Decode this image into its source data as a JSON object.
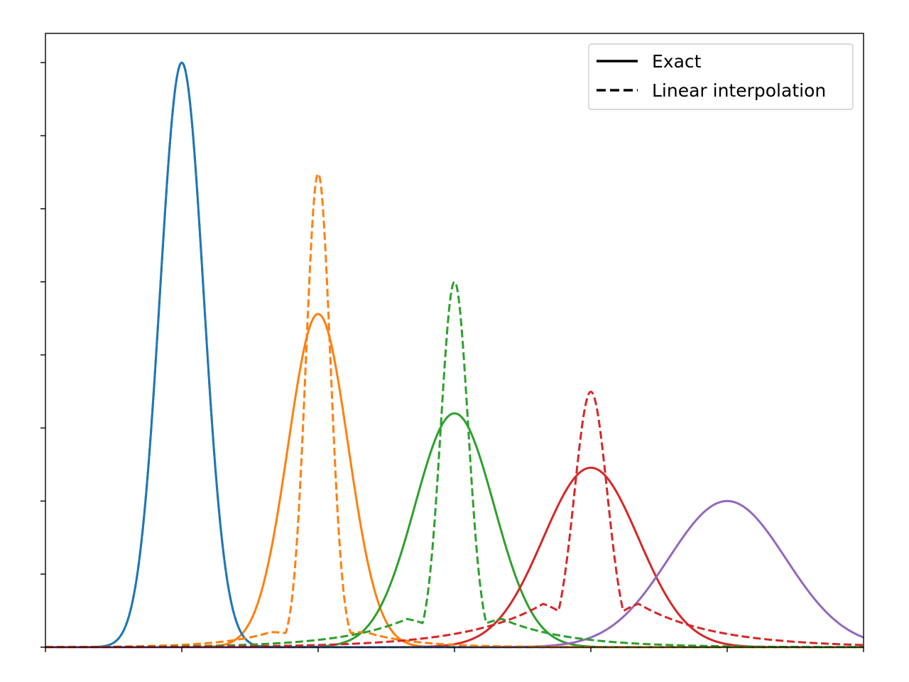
{
  "chart_data": {
    "type": "line",
    "title": "",
    "xlabel": "",
    "ylabel": "",
    "xlim": [
      0,
      6
    ],
    "ylim": [
      0,
      1.05
    ],
    "xticks": [
      0,
      1,
      2,
      3,
      4,
      5,
      6
    ],
    "yticks": [
      0,
      0.125,
      0.25,
      0.375,
      0.5,
      0.625,
      0.75,
      0.875,
      1.0
    ],
    "tick_labels_shown": false,
    "grid": false,
    "legend": {
      "placement": "top-right",
      "entries": [
        {
          "label": "Exact",
          "linestyle": "solid"
        },
        {
          "label": "Linear interpolation",
          "linestyle": "dashed"
        }
      ]
    },
    "series": [
      {
        "kind": "exact",
        "linestyle": "solid",
        "color": "#1f77b4",
        "center": 1,
        "peak": 1.0,
        "sigma": 0.16
      },
      {
        "kind": "exact",
        "linestyle": "solid",
        "color": "#ff7f0e",
        "center": 2,
        "peak": 0.57,
        "sigma": 0.22
      },
      {
        "kind": "exact",
        "linestyle": "solid",
        "color": "#2ca02c",
        "center": 3,
        "peak": 0.4,
        "sigma": 0.29
      },
      {
        "kind": "exact",
        "linestyle": "solid",
        "color": "#d62728",
        "center": 4,
        "peak": 0.307,
        "sigma": 0.35
      },
      {
        "kind": "exact",
        "linestyle": "solid",
        "color": "#9467bd",
        "center": 5,
        "peak": 0.25,
        "sigma": 0.43
      },
      {
        "kind": "interp",
        "linestyle": "dashed",
        "color": "#1f77b4",
        "center": 1,
        "peak": 1.0,
        "sigma": 0.16
      },
      {
        "kind": "interp",
        "linestyle": "dashed",
        "color": "#ff7f0e",
        "center": 2,
        "peak": 0.81,
        "sigma": 0.09,
        "tail_amp": 0.07,
        "tail_sigma": 0.35
      },
      {
        "kind": "interp",
        "linestyle": "dashed",
        "color": "#2ca02c",
        "center": 3,
        "peak": 0.625,
        "sigma": 0.1,
        "tail_amp": 0.1,
        "tail_sigma": 0.48
      },
      {
        "kind": "interp",
        "linestyle": "dashed",
        "color": "#d62728",
        "center": 4,
        "peak": 0.437,
        "sigma": 0.12,
        "tail_amp": 0.14,
        "tail_sigma": 0.55
      }
    ],
    "colors": {
      "blue": "#1f77b4",
      "orange": "#ff7f0e",
      "green": "#2ca02c",
      "red": "#d62728",
      "purple": "#9467bd"
    }
  }
}
